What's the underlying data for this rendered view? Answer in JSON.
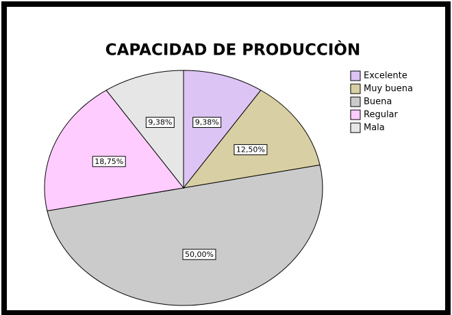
{
  "chart_data": {
    "type": "pie",
    "title": "CAPACIDAD DE PRODUCCIÒN",
    "categories": [
      "Excelente",
      "Muy buena",
      "Buena",
      "Regular",
      "Mala"
    ],
    "values": [
      9.38,
      12.5,
      50,
      18.75,
      9.38
    ],
    "value_labels": [
      "9,38%",
      "12,50%",
      "50,00%",
      "18,75%",
      "9,38%"
    ],
    "colors": [
      "#dcc4f4",
      "#d8d0a4",
      "#cbcbcb",
      "#ffccff",
      "#e6e6e6"
    ],
    "legend": "right"
  }
}
